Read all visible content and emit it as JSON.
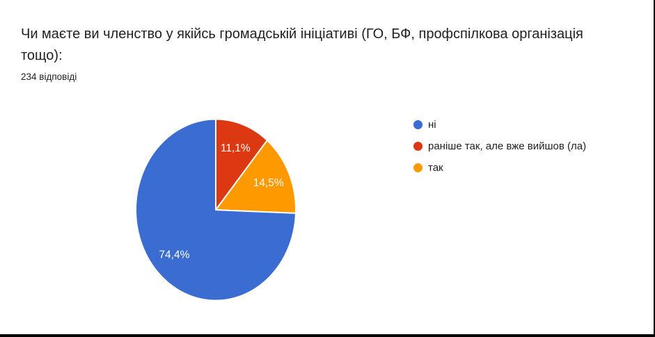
{
  "header": {
    "title": "Чи маєте ви членство у якійсь громадській ініціативі (ГО, БФ, профспілкова організація тощо):",
    "responses_count": "234 відповіді"
  },
  "chart_data": {
    "type": "pie",
    "title": "Чи маєте ви членство у якійсь громадській ініціативі (ГО, БФ, профспілкова організація тощо):",
    "subtitle": "234 відповіді",
    "categories": [
      "ні",
      "раніше так, але вже вийшов (ла)",
      "так"
    ],
    "values": [
      74.4,
      11.1,
      14.5
    ],
    "value_labels": [
      "74,4%",
      "11,1%",
      "14,5%"
    ],
    "colors": [
      "#3B6CD1",
      "#DC3912",
      "#FF9900"
    ],
    "label_text_color": "#ffffff",
    "slice_gap_color": "#ffffff",
    "legend_position": "right",
    "start_angle_deg": 0,
    "clockwise_slice_order_from_top": [
      1,
      2,
      0
    ]
  }
}
